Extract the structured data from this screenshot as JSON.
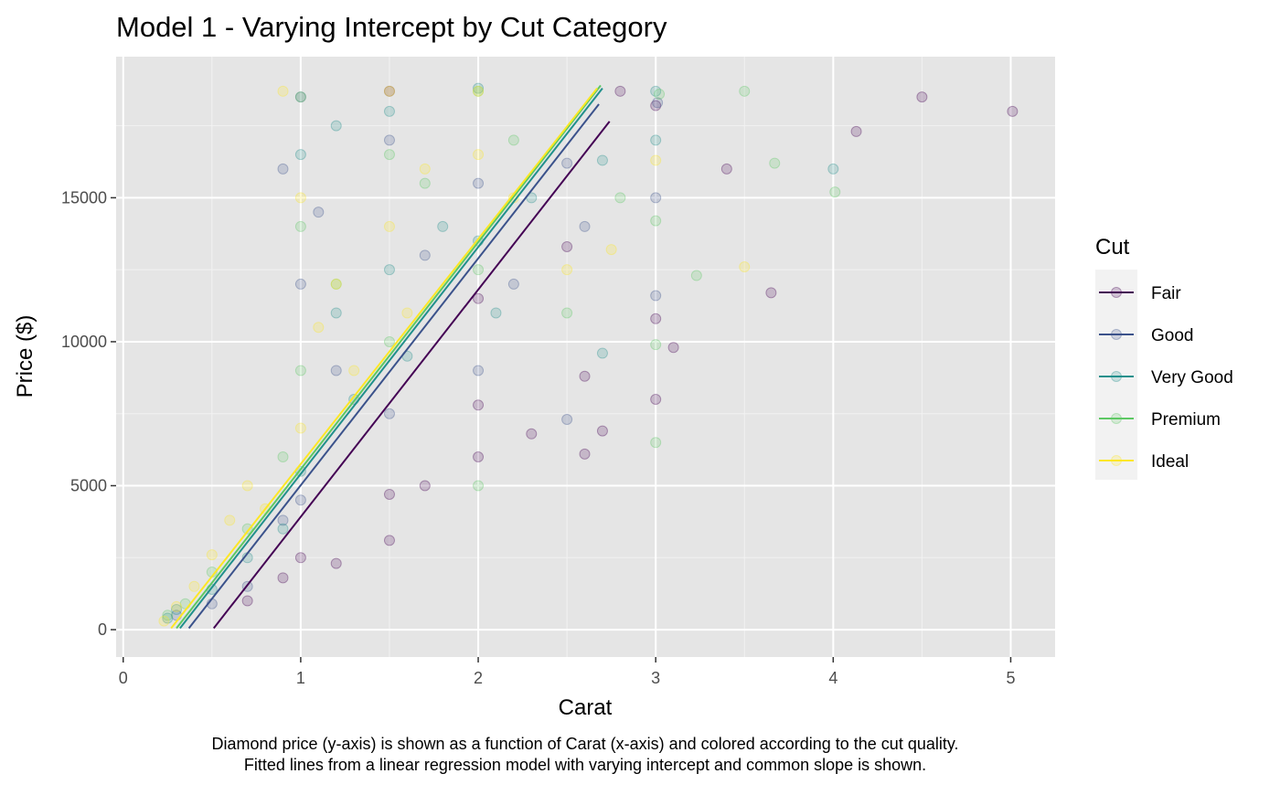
{
  "chart_data": {
    "type": "scatter",
    "title": "Model 1 - Varying Intercept by Cut Category",
    "xlabel": "Carat",
    "ylabel": "Price ($)",
    "caption": [
      "Diamond price (y-axis) is shown as a function of Carat (x-axis) and colored according to the cut quality.",
      "Fitted lines from a linear regression model with varying intercept and common slope is shown."
    ],
    "xlim": [
      -0.04,
      5.25
    ],
    "ylim": [
      -950,
      19900
    ],
    "x_ticks": [
      0,
      1,
      2,
      3,
      4,
      5
    ],
    "y_ticks": [
      0,
      5000,
      10000,
      15000
    ],
    "x_minor_ticks": [
      0.5,
      1.5,
      2.5,
      3.5,
      4.5
    ],
    "y_minor_ticks": [
      2500,
      7500,
      12500,
      17500
    ],
    "grid": true,
    "legend": {
      "title": "Cut",
      "position": "right"
    },
    "background_color": "#E5E5E5",
    "series": [
      {
        "name": "Fair",
        "color": "#440154",
        "fit_line": {
          "x": [
            0.51,
            2.74
          ],
          "y": [
            50,
            17650
          ]
        },
        "points": [
          [
            0.7,
            1000
          ],
          [
            0.9,
            1800
          ],
          [
            1.0,
            2500
          ],
          [
            1.2,
            2300
          ],
          [
            1.5,
            3100
          ],
          [
            1.5,
            4700
          ],
          [
            1.7,
            5000
          ],
          [
            2.0,
            6000
          ],
          [
            2.0,
            7800
          ],
          [
            2.3,
            6800
          ],
          [
            2.6,
            6100
          ],
          [
            2.7,
            6900
          ],
          [
            2.0,
            11500
          ],
          [
            2.6,
            8800
          ],
          [
            3.0,
            8000
          ],
          [
            3.0,
            10800
          ],
          [
            3.1,
            9800
          ],
          [
            3.4,
            16000
          ],
          [
            3.65,
            11700
          ],
          [
            4.13,
            17300
          ],
          [
            4.5,
            18500
          ],
          [
            5.01,
            18000
          ],
          [
            3.0,
            18200
          ],
          [
            2.8,
            18700
          ],
          [
            1.5,
            18700
          ],
          [
            2.5,
            13300
          ]
        ]
      },
      {
        "name": "Good",
        "color": "#3B528B",
        "fit_line": {
          "x": [
            0.37,
            2.68
          ],
          "y": [
            50,
            18250
          ]
        },
        "points": [
          [
            0.3,
            500
          ],
          [
            0.5,
            900
          ],
          [
            0.7,
            1500
          ],
          [
            0.9,
            3800
          ],
          [
            1.0,
            4500
          ],
          [
            1.0,
            12000
          ],
          [
            1.1,
            14500
          ],
          [
            1.2,
            9000
          ],
          [
            1.5,
            7500
          ],
          [
            1.5,
            17000
          ],
          [
            1.7,
            13000
          ],
          [
            2.0,
            9000
          ],
          [
            2.0,
            15500
          ],
          [
            2.2,
            12000
          ],
          [
            2.5,
            16200
          ],
          [
            2.5,
            7300
          ],
          [
            3.0,
            15000
          ],
          [
            3.0,
            11600
          ],
          [
            3.01,
            18300
          ],
          [
            1.0,
            18500
          ],
          [
            2.6,
            14000
          ],
          [
            0.9,
            16000
          ]
        ]
      },
      {
        "name": "Very Good",
        "color": "#21908C",
        "fit_line": {
          "x": [
            0.32,
            2.7
          ],
          "y": [
            50,
            18800
          ]
        },
        "points": [
          [
            0.25,
            400
          ],
          [
            0.3,
            700
          ],
          [
            0.5,
            1400
          ],
          [
            0.7,
            2500
          ],
          [
            0.9,
            3500
          ],
          [
            1.0,
            5500
          ],
          [
            1.0,
            16500
          ],
          [
            1.2,
            11000
          ],
          [
            1.3,
            8000
          ],
          [
            1.5,
            12500
          ],
          [
            1.5,
            18000
          ],
          [
            1.6,
            9500
          ],
          [
            1.8,
            14000
          ],
          [
            2.0,
            18800
          ],
          [
            2.0,
            13500
          ],
          [
            2.1,
            11000
          ],
          [
            2.3,
            15000
          ],
          [
            2.7,
            16300
          ],
          [
            3.0,
            17000
          ],
          [
            3.0,
            18700
          ],
          [
            4.0,
            16000
          ],
          [
            2.7,
            9600
          ],
          [
            1.2,
            17500
          ]
        ]
      },
      {
        "name": "Premium",
        "color": "#5DC863",
        "fit_line": {
          "x": [
            0.3,
            2.69
          ],
          "y": [
            50,
            18900
          ]
        },
        "points": [
          [
            0.25,
            500
          ],
          [
            0.35,
            900
          ],
          [
            0.5,
            2000
          ],
          [
            0.7,
            3500
          ],
          [
            0.9,
            6000
          ],
          [
            1.0,
            9000
          ],
          [
            1.0,
            14000
          ],
          [
            1.2,
            12000
          ],
          [
            1.5,
            10000
          ],
          [
            1.5,
            16500
          ],
          [
            1.7,
            15500
          ],
          [
            2.0,
            12500
          ],
          [
            2.0,
            18700
          ],
          [
            2.2,
            17000
          ],
          [
            2.5,
            11000
          ],
          [
            2.8,
            15000
          ],
          [
            3.0,
            14200
          ],
          [
            3.0,
            9900
          ],
          [
            3.02,
            18600
          ],
          [
            3.5,
            18700
          ],
          [
            3.67,
            16200
          ],
          [
            4.01,
            15200
          ],
          [
            3.23,
            12300
          ],
          [
            1.0,
            18500
          ],
          [
            2.0,
            5000
          ],
          [
            3.0,
            6500
          ]
        ]
      },
      {
        "name": "Ideal",
        "color": "#FDE725",
        "fit_line": {
          "x": [
            0.27,
            2.67
          ],
          "y": [
            50,
            18800
          ]
        },
        "points": [
          [
            0.23,
            300
          ],
          [
            0.3,
            800
          ],
          [
            0.4,
            1500
          ],
          [
            0.5,
            2600
          ],
          [
            0.6,
            3800
          ],
          [
            0.7,
            5000
          ],
          [
            0.8,
            4200
          ],
          [
            1.0,
            7000
          ],
          [
            1.0,
            15000
          ],
          [
            1.1,
            10500
          ],
          [
            1.2,
            12000
          ],
          [
            1.3,
            9000
          ],
          [
            1.5,
            14000
          ],
          [
            1.5,
            18700
          ],
          [
            1.6,
            11000
          ],
          [
            1.7,
            16000
          ],
          [
            2.0,
            16500
          ],
          [
            2.0,
            18700
          ],
          [
            2.2,
            15000
          ],
          [
            2.5,
            12500
          ],
          [
            3.0,
            16300
          ],
          [
            3.5,
            12600
          ],
          [
            0.9,
            18700
          ],
          [
            2.75,
            13200
          ]
        ]
      }
    ]
  }
}
